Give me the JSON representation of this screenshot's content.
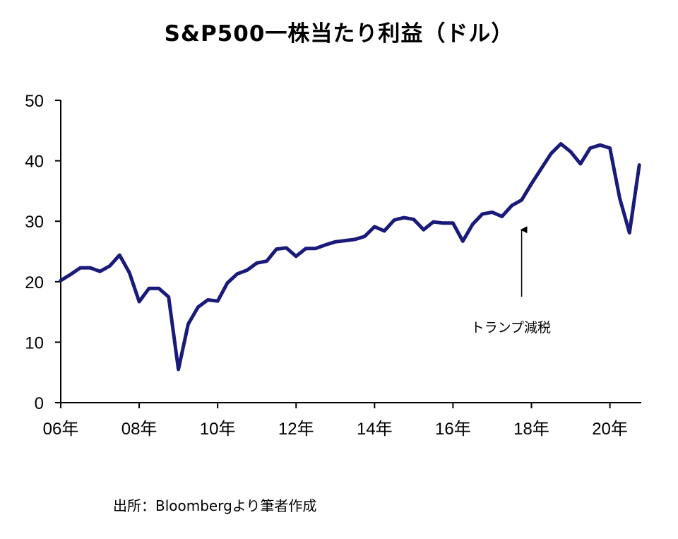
{
  "chart_data": {
    "type": "line",
    "title": "S&P500一株当たり利益（ドル）",
    "xlabel": "",
    "ylabel": "",
    "ylim": [
      0,
      50
    ],
    "yticks": [
      0,
      10,
      20,
      30,
      40,
      50
    ],
    "xlim": [
      2006,
      2020.8
    ],
    "xticks": [
      {
        "value": 2006,
        "label": "06年"
      },
      {
        "value": 2008,
        "label": "08年"
      },
      {
        "value": 2010,
        "label": "10年"
      },
      {
        "value": 2012,
        "label": "12年"
      },
      {
        "value": 2014,
        "label": "14年"
      },
      {
        "value": 2016,
        "label": "16年"
      },
      {
        "value": 2018,
        "label": "18年"
      },
      {
        "value": 2020,
        "label": "20年"
      }
    ],
    "series": [
      {
        "name": "S&P500一株当たり利益",
        "color": "#1a1a7a",
        "x": [
          2006.0,
          2006.25,
          2006.5,
          2006.75,
          2007.0,
          2007.25,
          2007.5,
          2007.75,
          2008.0,
          2008.25,
          2008.5,
          2008.75,
          2009.0,
          2009.25,
          2009.5,
          2009.75,
          2010.0,
          2010.25,
          2010.5,
          2010.75,
          2011.0,
          2011.25,
          2011.5,
          2011.75,
          2012.0,
          2012.25,
          2012.5,
          2012.75,
          2013.0,
          2013.25,
          2013.5,
          2013.75,
          2014.0,
          2014.25,
          2014.5,
          2014.75,
          2015.0,
          2015.25,
          2015.5,
          2015.75,
          2016.0,
          2016.25,
          2016.5,
          2016.75,
          2017.0,
          2017.25,
          2017.5,
          2017.75,
          2018.0,
          2018.25,
          2018.5,
          2018.75,
          2019.0,
          2019.25,
          2019.5,
          2019.75,
          2020.0,
          2020.25,
          2020.5,
          2020.75
        ],
        "values": [
          20.2,
          21.2,
          22.3,
          22.3,
          21.7,
          22.6,
          24.4,
          21.5,
          16.7,
          18.9,
          18.9,
          17.5,
          5.5,
          13.0,
          15.8,
          17.0,
          16.8,
          19.8,
          21.3,
          21.9,
          23.1,
          23.4,
          25.4,
          25.6,
          24.2,
          25.5,
          25.5,
          26.1,
          26.6,
          26.8,
          27.0,
          27.5,
          29.1,
          28.4,
          30.2,
          30.6,
          30.3,
          28.6,
          29.9,
          29.7,
          29.7,
          26.7,
          29.5,
          31.2,
          31.5,
          30.8,
          32.6,
          33.5,
          36.2,
          38.7,
          41.2,
          42.8,
          41.5,
          39.5,
          42.1,
          42.6,
          42.1,
          33.8,
          28.1,
          39.3
        ]
      }
    ],
    "annotations": [
      {
        "text": "トランプ減税",
        "x": 2017.75,
        "y": 30.0,
        "arrow": "up"
      }
    ],
    "source": "出所：Bloombergより筆者作成"
  }
}
